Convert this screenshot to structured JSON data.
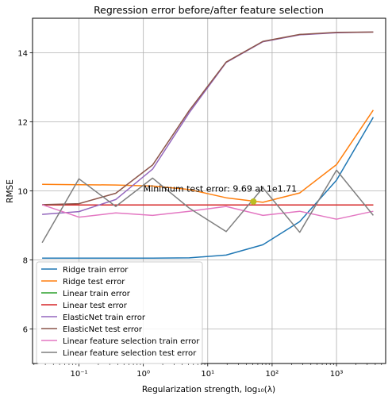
{
  "chart_data": {
    "type": "line",
    "title": "Regression error before/after feature selection",
    "xlabel": "Regularization strength, log₁₀(λ)",
    "ylabel": "RMSE",
    "xscale": "log",
    "xlim": [
      0.019,
      5800
    ],
    "ylim": [
      5.0,
      15.0
    ],
    "grid": true,
    "legend_location": "lower-left",
    "x_ticks": [
      {
        "value": 0.1,
        "label": "10⁻¹"
      },
      {
        "value": 1,
        "label": "10⁰"
      },
      {
        "value": 10,
        "label": "10¹"
      },
      {
        "value": 100,
        "label": "10²"
      },
      {
        "value": 1000,
        "label": "10³"
      }
    ],
    "y_ticks": [
      {
        "value": 6,
        "label": "6"
      },
      {
        "value": 8,
        "label": "8"
      },
      {
        "value": 10,
        "label": "10"
      },
      {
        "value": 12,
        "label": "12"
      },
      {
        "value": 14,
        "label": "14"
      }
    ],
    "x": [
      0.0268,
      0.1,
      0.373,
      1.39,
      5.18,
      19.3,
      72.0,
      268,
      1000,
      3728
    ],
    "series": [
      {
        "name": "Ridge train error",
        "color": "#1f77b4",
        "values": [
          8.05,
          8.05,
          8.05,
          8.05,
          8.06,
          8.14,
          8.44,
          9.11,
          10.31,
          12.13
        ]
      },
      {
        "name": "Ridge test error",
        "color": "#ff7f0e",
        "values": [
          10.19,
          10.18,
          10.17,
          10.14,
          10.04,
          9.8,
          9.67,
          9.94,
          10.76,
          12.34
        ]
      },
      {
        "name": "Linear train error",
        "color": "#2ca02c",
        "values": [
          9.59,
          9.59,
          9.59,
          9.59,
          9.59,
          9.59,
          9.59,
          9.59,
          9.59,
          9.59
        ]
      },
      {
        "name": "Linear test error",
        "color": "#d62728",
        "values": [
          9.59,
          9.59,
          9.59,
          9.59,
          9.59,
          9.59,
          9.59,
          9.59,
          9.59,
          9.59
        ]
      },
      {
        "name": "ElasticNet train error",
        "color": "#9467bd",
        "values": [
          9.32,
          9.4,
          9.75,
          10.63,
          12.27,
          13.72,
          14.32,
          14.52,
          14.58,
          14.6
        ]
      },
      {
        "name": "ElasticNet test error",
        "color": "#8c564b",
        "values": [
          9.6,
          9.63,
          9.93,
          10.75,
          12.33,
          13.73,
          14.33,
          14.53,
          14.59,
          14.6
        ]
      },
      {
        "name": "Linear feature selection train error",
        "color": "#e377c2",
        "values": [
          9.6,
          9.24,
          9.36,
          9.29,
          9.41,
          9.55,
          9.29,
          9.41,
          9.18,
          9.41
        ]
      },
      {
        "name": "Linear feature selection test error",
        "color": "#7f7f7f",
        "values": [
          8.5,
          10.35,
          9.55,
          10.37,
          9.5,
          8.82,
          10.09,
          8.8,
          10.6,
          9.29
        ]
      }
    ],
    "annotation": {
      "text": "Minimum test error: 9.69 at 1e1.71",
      "point": {
        "x": 51.3,
        "y": 9.69
      },
      "marker_color": "#bcbd22"
    }
  }
}
